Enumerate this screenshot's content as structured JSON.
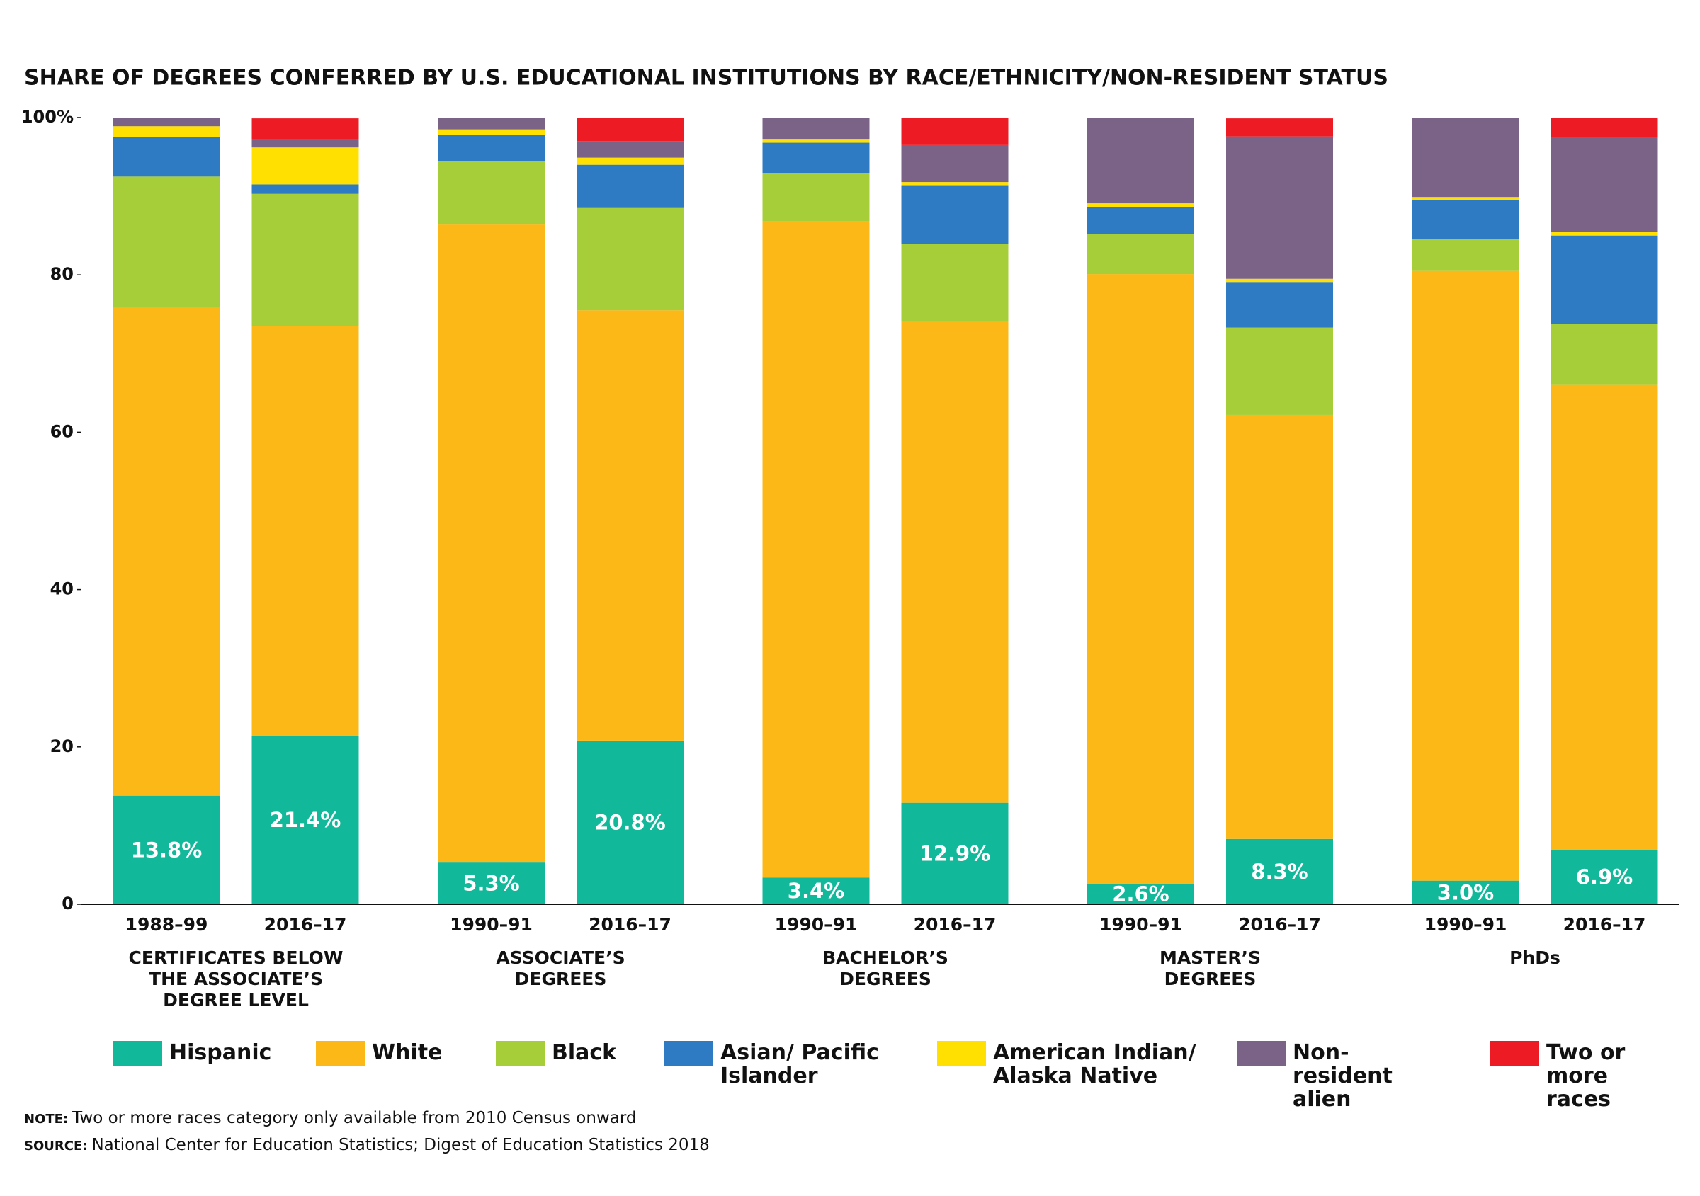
{
  "chart_data": {
    "type": "stacked_bar",
    "title": "SHARE OF DEGREES CONFERRED BY U.S. EDUCATIONAL INSTITUTIONS BY RACE/ETHNICITY/NON-RESIDENT STATUS",
    "categories": [
      "1988–99",
      "2016–17",
      "1990–91",
      "2016–17",
      "1990–91",
      "2016–17",
      "1990–91",
      "2016–17",
      "1990–91",
      "2016–17"
    ],
    "groups": [
      [
        "CERTIFICATES BELOW",
        "THE ASSOCIATE’S",
        "DEGREE LEVEL"
      ],
      [
        "ASSOCIATE’S",
        "DEGREES"
      ],
      [
        "BACHELOR’S",
        "DEGREES"
      ],
      [
        "MASTER’S",
        "DEGREES"
      ],
      [
        "PhDs"
      ]
    ],
    "series": [
      {
        "name": "Hispanic",
        "color": "#12b89a",
        "values": [
          13.8,
          21.4,
          5.3,
          20.8,
          3.4,
          12.9,
          2.6,
          8.3,
          3.0,
          6.9
        ],
        "value_labels": [
          "13.8%",
          "21.4%",
          "5.3%",
          "20.8%",
          "3.4%",
          "12.9%",
          "2.6%",
          "8.3%",
          "3.0%",
          "6.9%"
        ]
      },
      {
        "name": "White",
        "color": "#fbb817",
        "values": [
          62.0,
          52.1,
          81.1,
          54.7,
          83.4,
          61.1,
          77.5,
          53.9,
          77.5,
          59.2
        ]
      },
      {
        "name": "Black",
        "color": "#a6ce39",
        "values": [
          16.7,
          16.8,
          8.1,
          13.0,
          6.1,
          9.9,
          5.1,
          11.1,
          4.1,
          7.7
        ]
      },
      {
        "name": "Asian/ Pacific Islander",
        "color": "#2e7bc4",
        "values": [
          5.0,
          1.2,
          3.3,
          5.5,
          3.9,
          7.5,
          3.4,
          5.8,
          4.9,
          11.2
        ]
      },
      {
        "name": "American Indian/ Alaska Native",
        "color": "#ffe000",
        "values": [
          1.4,
          4.7,
          0.7,
          0.9,
          0.4,
          0.4,
          0.5,
          0.4,
          0.4,
          0.5
        ]
      },
      {
        "name": "Non-resident alien",
        "color": "#7b6388",
        "values": [
          1.1,
          1.1,
          1.5,
          2.1,
          2.8,
          4.7,
          10.9,
          18.1,
          10.1,
          12.0
        ]
      },
      {
        "name": "Two or more races",
        "color": "#ed1c24",
        "values": [
          0,
          2.6,
          0,
          3.0,
          0,
          3.5,
          0,
          2.3,
          0,
          2.5
        ]
      }
    ],
    "ylim": [
      0,
      100
    ],
    "yticks": [
      0,
      20,
      40,
      60,
      80,
      {
        "value": 100,
        "label": "100%"
      }
    ],
    "note_label": "NOTE:",
    "note": "Two or more races category only available from 2010 Census onward",
    "source_label": "SOURCE:",
    "source": "National Center for Education Statistics; Digest of Education Statistics 2018"
  }
}
